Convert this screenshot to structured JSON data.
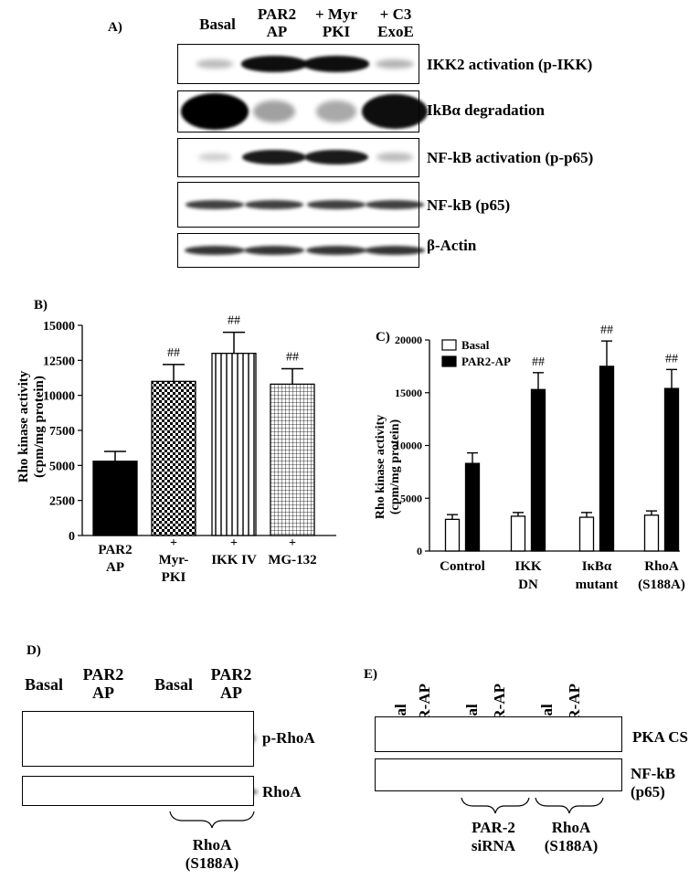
{
  "panelA": {
    "label": "A)",
    "lanes": [
      "Basal",
      "PAR2 AP",
      "+ Myr PKI",
      "+ C3 ExoE"
    ],
    "rows": [
      "IKK2 activation (p-IKK)",
      "IkBα degradation",
      "NF-kB activation (p-p65)",
      "NF-kB (p65)",
      "β-Actin"
    ],
    "intensity": [
      [
        0.15,
        0.95,
        0.95,
        0.2
      ],
      [
        1.0,
        0.3,
        0.25,
        0.95
      ],
      [
        0.05,
        0.9,
        0.9,
        0.15
      ],
      [
        0.75,
        0.75,
        0.75,
        0.75
      ],
      [
        0.8,
        0.8,
        0.8,
        0.8
      ]
    ]
  },
  "panelB": {
    "label": "B)",
    "ylabel": "Rho kinase activity (cpm/mg protein)",
    "chart_data": {
      "type": "bar",
      "categories": [
        "PAR2 AP",
        "+ Myr-PKI",
        "+ IKK IV",
        "+ MG-132"
      ],
      "values": [
        5300,
        11000,
        13000,
        10800
      ],
      "errors": [
        700,
        1200,
        1500,
        1100
      ],
      "annotations": [
        "",
        "##",
        "##",
        "##"
      ],
      "ylim": [
        0,
        15000
      ],
      "yticks": [
        "0",
        "2500",
        "5000",
        "7500",
        "10000",
        "12500",
        "15000"
      ]
    },
    "xlabels": [
      [
        "PAR2",
        "AP"
      ],
      [
        "+",
        "Myr-",
        "PKI"
      ],
      [
        "+",
        "IKK IV"
      ],
      [
        "+",
        "MG-132"
      ]
    ]
  },
  "panelC": {
    "label": "C)",
    "ylabel": "Rho kinase activity (cpm/mg protein)",
    "legend": [
      "Basal",
      "PAR2-AP"
    ],
    "chart_data": {
      "type": "bar",
      "categories": [
        "Control",
        "IKK DN",
        "IκBα mutant",
        "RhoA (S188A)"
      ],
      "series": [
        {
          "name": "Basal",
          "values": [
            3000,
            3300,
            3200,
            3400
          ],
          "errors": [
            450,
            350,
            450,
            400
          ]
        },
        {
          "name": "PAR2-AP",
          "values": [
            8300,
            15300,
            17500,
            15400
          ],
          "errors": [
            1000,
            1600,
            2400,
            1800
          ]
        }
      ],
      "annotations": [
        "",
        "##",
        "##",
        "##"
      ],
      "ylim": [
        0,
        20000
      ],
      "yticks": [
        "0",
        "5000",
        "10000",
        "15000",
        "20000"
      ]
    },
    "xlabels": [
      [
        "Control"
      ],
      [
        "IKK",
        "DN"
      ],
      [
        "IκBα",
        "mutant"
      ],
      [
        "RhoA",
        "(S188A)"
      ]
    ]
  },
  "panelD": {
    "label": "D)",
    "lanes": [
      [
        "Basal"
      ],
      [
        "PAR2",
        "AP"
      ],
      [
        "Basal"
      ],
      [
        "PAR2",
        "AP"
      ]
    ],
    "rows": [
      "p-RhoA",
      "RhoA"
    ],
    "bracket": [
      "RhoA",
      "(S188A)"
    ]
  },
  "panelE": {
    "label": "E)",
    "lanes": [
      "Basal",
      "PAR-AP",
      "Basal",
      "PAR-AP",
      "Basal",
      "PAR-AP"
    ],
    "rows": [
      "PKA CS",
      "NF-kB (p65)"
    ],
    "rowsSplit": [
      [
        "PKA CS"
      ],
      [
        "NF-kB",
        "(p65)"
      ]
    ],
    "brackets": [
      [
        "PAR-2",
        "siRNA"
      ],
      [
        "RhoA",
        "(S188A)"
      ]
    ]
  }
}
